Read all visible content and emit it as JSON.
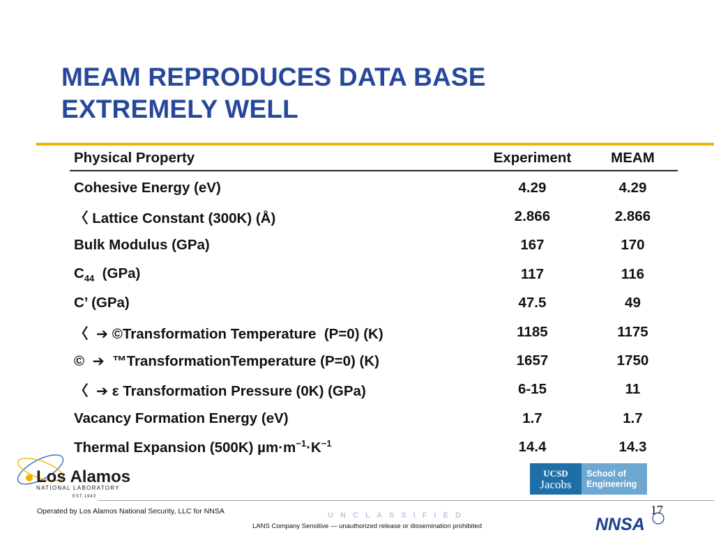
{
  "title_lines": [
    "MEAM REPRODUCES DATA BASE",
    "EXTREMELY WELL"
  ],
  "table": {
    "headers": [
      "Physical Property",
      "Experiment",
      "MEAM"
    ],
    "rows": [
      {
        "property": "Cohesive Energy (eV)",
        "experiment": "4.29",
        "meam": "4.29"
      },
      {
        "property": "〈  Lattice Constant (300K) (Å)",
        "experiment": "2.866",
        "meam": "2.866"
      },
      {
        "property": "Bulk Modulus (GPa)",
        "experiment": "167",
        "meam": "170"
      },
      {
        "property_main": "C",
        "property_sub": "44",
        "property_rest": "  (GPa)",
        "experiment": "117",
        "meam": "116"
      },
      {
        "property": "C’ (GPa)",
        "experiment": "47.5",
        "meam": "49"
      },
      {
        "property": "〈  ➔ ©Transformation Temperature  (P=0) (K)",
        "experiment": "1185",
        "meam": "1175"
      },
      {
        "property": "©  ➔  ™TransformationTemperature (P=0) (K)",
        "experiment": "1657",
        "meam": "1750"
      },
      {
        "property": "〈  ➔ ε Transformation Pressure (0K) (GPa)",
        "experiment": "6-15",
        "meam": "11"
      },
      {
        "property": "Vacancy Formation Energy (eV)",
        "experiment": "1.7",
        "meam": "1.7"
      },
      {
        "property_main": "Thermal Expansion (500K) µm·m",
        "property_sup1": "−1",
        "property_mid": "·K",
        "property_sup2": "−1",
        "experiment": "14.4",
        "meam": "14.3"
      }
    ]
  },
  "logos": {
    "lanl_name": "Los Alamos",
    "lanl_sub": "NATIONAL LABORATORY",
    "lanl_est": "EST.1943",
    "ucsd_top": "UCSD",
    "ucsd_bottom": "Jacobs",
    "ucsd_school_1": "School of",
    "ucsd_school_2": "Engineering",
    "nnsa": "NNSA"
  },
  "footer": {
    "operated_by": "Operated by Los Alamos National Security, LLC for NNSA",
    "classification": "U N C L A S S I F I E D",
    "sensitivity": "LANS Company Sensitive — unauthorized release or dissemination prohibited",
    "page_number": "17"
  },
  "colors": {
    "title": "#27479b",
    "gold_rule": "#f2b300",
    "ucsd_dark": "#1f6fa7",
    "ucsd_light": "#6fa7d3",
    "nnsa_blue": "#1d3f8f"
  }
}
